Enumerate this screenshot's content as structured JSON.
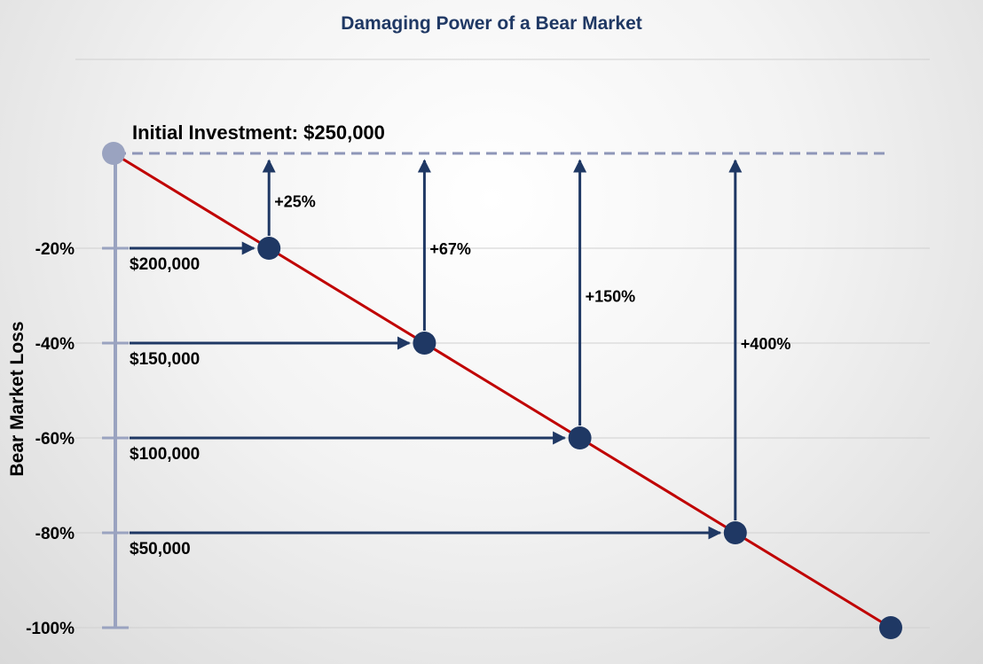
{
  "chart_data": {
    "type": "line",
    "title": "Damaging Power of a Bear Market",
    "ylabel": "Bear Market Loss",
    "ylim": [
      -100,
      0
    ],
    "y_ticks": [
      "-20%",
      "-40%",
      "-60%",
      "-80%",
      "-100%"
    ],
    "y_tick_values": [
      -20,
      -40,
      -60,
      -80,
      -100
    ],
    "initial_label": "Initial Investment: $250,000",
    "points": [
      {
        "loss": -20,
        "value_label": "$200,000",
        "recovery_label": "+25%"
      },
      {
        "loss": -40,
        "value_label": "$150,000",
        "recovery_label": "+67%"
      },
      {
        "loss": -60,
        "value_label": "$100,000",
        "recovery_label": "+150%"
      },
      {
        "loss": -80,
        "value_label": "$50,000",
        "recovery_label": "+400%"
      }
    ],
    "colors": {
      "line": "#c00000",
      "markers": "#1f3864",
      "arrows": "#1f3864",
      "start_marker": "#9aa3c0",
      "baseline": "#8e96b8",
      "grid": "#d0d0d0",
      "title": "#1f3864"
    }
  }
}
